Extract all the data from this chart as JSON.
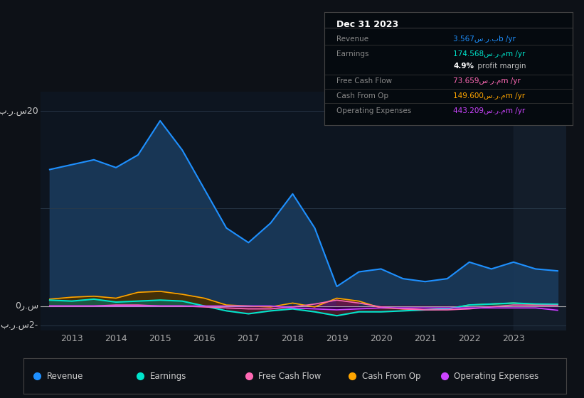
{
  "bg_color": "#0d1117",
  "plot_bg_color": "#0d1520",
  "grid_color": "#2a3a4a",
  "years": [
    2012.5,
    2013,
    2013.5,
    2014,
    2014.5,
    2015,
    2015.5,
    2016,
    2016.5,
    2017,
    2017.5,
    2018,
    2018.5,
    2019,
    2019.5,
    2020,
    2020.5,
    2021,
    2021.5,
    2022,
    2022.5,
    2023,
    2023.5,
    2024
  ],
  "revenue": [
    14.0,
    14.5,
    15.0,
    14.2,
    15.5,
    19.0,
    16.0,
    12.0,
    8.0,
    6.5,
    8.5,
    11.5,
    8.0,
    2.0,
    3.5,
    3.8,
    2.8,
    2.5,
    2.8,
    4.5,
    3.8,
    4.5,
    3.8,
    3.6
  ],
  "earnings": [
    0.6,
    0.5,
    0.7,
    0.4,
    0.5,
    0.6,
    0.5,
    0.0,
    -0.5,
    -0.8,
    -0.5,
    -0.3,
    -0.6,
    -1.0,
    -0.6,
    -0.6,
    -0.5,
    -0.4,
    -0.3,
    0.1,
    0.2,
    0.3,
    0.2,
    0.17
  ],
  "free_cash_flow": [
    0.0,
    0.0,
    0.0,
    0.1,
    0.1,
    0.0,
    0.0,
    -0.1,
    -0.2,
    -0.3,
    -0.3,
    -0.1,
    0.2,
    0.6,
    0.3,
    -0.1,
    -0.3,
    -0.4,
    -0.4,
    -0.3,
    -0.1,
    0.1,
    0.08,
    0.07
  ],
  "cash_from_op": [
    0.7,
    0.9,
    1.0,
    0.8,
    1.4,
    1.5,
    1.2,
    0.8,
    0.1,
    0.0,
    -0.1,
    0.3,
    -0.1,
    0.8,
    0.5,
    -0.2,
    -0.3,
    -0.4,
    -0.3,
    0.1,
    0.2,
    0.3,
    0.15,
    0.15
  ],
  "op_expenses": [
    0.0,
    0.0,
    0.0,
    0.0,
    0.0,
    0.0,
    0.0,
    0.0,
    0.0,
    0.0,
    0.0,
    -0.2,
    -0.3,
    -0.4,
    -0.3,
    -0.2,
    -0.2,
    -0.2,
    -0.2,
    -0.2,
    -0.2,
    -0.2,
    -0.2,
    -0.44
  ],
  "revenue_color": "#1e90ff",
  "earnings_color": "#00e5cc",
  "free_cash_flow_color": "#ff69b4",
  "cash_from_op_color": "#ffa500",
  "op_expenses_color": "#cc44ff",
  "xlim": [
    2012.3,
    2024.2
  ],
  "ylim": [
    -2.5,
    22
  ],
  "xticks": [
    2013,
    2014,
    2015,
    2016,
    2017,
    2018,
    2019,
    2020,
    2021,
    2022,
    2023
  ],
  "info_box": {
    "title": "Dec 31 2023",
    "rows": [
      {
        "label": "Revenue",
        "value": "3.567س.ر.بb /yr",
        "value_color": "#1e90ff"
      },
      {
        "label": "Earnings",
        "value": "174.568س.ر.مm /yr",
        "value_color": "#00e5cc"
      },
      {
        "label": "",
        "value": "4.9% profit margin",
        "value_color": "#ffffff",
        "bold_part": "4.9%"
      },
      {
        "label": "Free Cash Flow",
        "value": "73.659س.ر.مm /yr",
        "value_color": "#ff69b4"
      },
      {
        "label": "Cash From Op",
        "value": "149.600س.ر.مm /yr",
        "value_color": "#ffa500"
      },
      {
        "label": "Operating Expenses",
        "value": "443.209س.ر.مm /yr",
        "value_color": "#cc44ff"
      }
    ]
  },
  "legend": [
    {
      "label": "Revenue",
      "color": "#1e90ff"
    },
    {
      "label": "Earnings",
      "color": "#00e5cc"
    },
    {
      "label": "Free Cash Flow",
      "color": "#ff69b4"
    },
    {
      "label": "Cash From Op",
      "color": "#ffa500"
    },
    {
      "label": "Operating Expenses",
      "color": "#cc44ff"
    }
  ]
}
